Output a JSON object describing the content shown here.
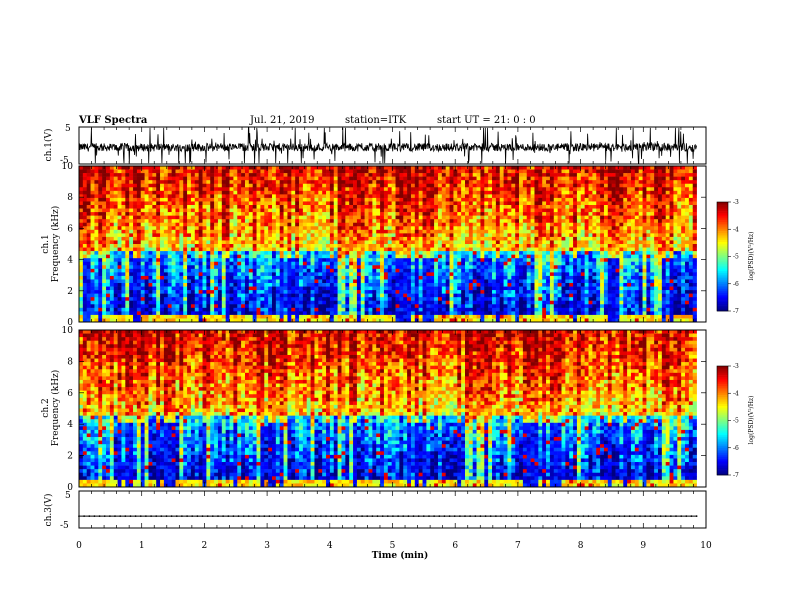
{
  "header": {
    "title": "VLF Spectra",
    "date": "Jul. 21, 2019",
    "station": "station=ITK",
    "start": "start UT = 21: 0 : 0"
  },
  "chart_data": [
    {
      "type": "line",
      "name": "ch1-waveform",
      "ylabel": "ch.1(V)",
      "ylim": [
        -5,
        5
      ],
      "yticks": [
        "5",
        "-5"
      ],
      "xlim": [
        0,
        10
      ],
      "baseline_value": -0.5,
      "x_end": 9.85
    },
    {
      "type": "heatmap",
      "name": "ch1-spectrogram",
      "ylabel_line1": "ch.1",
      "ylabel_line2": "Frequency (kHz)",
      "ylim": [
        0,
        10
      ],
      "yticks": [
        "0",
        "2",
        "4",
        "6",
        "8",
        "10"
      ],
      "xlim": [
        0,
        10
      ],
      "x_end": 9.85,
      "colorbar": {
        "label": "log(PSD)(V²/Hz)",
        "range": [
          -7,
          -3
        ],
        "ticks": [
          "-3",
          "-4",
          "-5",
          "-6",
          "-7"
        ]
      }
    },
    {
      "type": "heatmap",
      "name": "ch2-spectrogram",
      "ylabel_line1": "ch.2",
      "ylabel_line2": "Frequency (kHz)",
      "ylim": [
        0,
        10
      ],
      "yticks": [
        "0",
        "2",
        "4",
        "6",
        "8",
        "10"
      ],
      "xlim": [
        0,
        10
      ],
      "x_end": 9.85,
      "colorbar": {
        "label": "log(PSD)(V²/Hz)",
        "range": [
          -7,
          -3
        ],
        "ticks": [
          "-3",
          "-4",
          "-5",
          "-6",
          "-7"
        ]
      }
    },
    {
      "type": "line",
      "name": "ch3-waveform",
      "ylabel": "ch.3(V)",
      "ylim": [
        -5,
        5
      ],
      "yticks": [
        "5",
        "-5"
      ],
      "xlim": [
        0,
        10
      ],
      "baseline_value": -1.8,
      "x_end": 9.85
    }
  ],
  "xaxis": {
    "label": "Time (min)",
    "ticks": [
      "0",
      "1",
      "2",
      "3",
      "4",
      "5",
      "6",
      "7",
      "8",
      "9",
      "10"
    ]
  }
}
